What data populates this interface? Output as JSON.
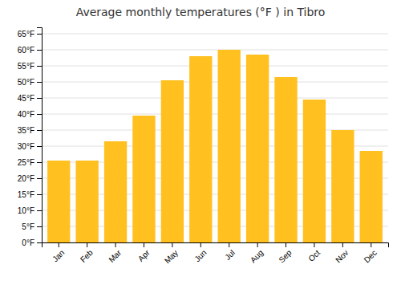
{
  "chart_data": {
    "type": "bar",
    "title": "Average monthly temperatures (°F ) in Tibro",
    "categories": [
      "Jan",
      "Feb",
      "Mar",
      "Apr",
      "May",
      "Jun",
      "Jul",
      "Aug",
      "Sep",
      "Oct",
      "Nov",
      "Dec"
    ],
    "values": [
      25.5,
      25.5,
      31.5,
      39.5,
      50.5,
      58.0,
      60.0,
      58.5,
      51.5,
      44.5,
      35.0,
      28.5
    ],
    "color": "#FFC020",
    "ylim": [
      0,
      67
    ],
    "yticks": [
      {
        "value": 0,
        "label": "0°F"
      },
      {
        "value": 5,
        "label": "5°F"
      },
      {
        "value": 10,
        "label": "10°F"
      },
      {
        "value": 15,
        "label": "15°F"
      },
      {
        "value": 20,
        "label": "20°F"
      },
      {
        "value": 25,
        "label": "25°F"
      },
      {
        "value": 30,
        "label": "30°F"
      },
      {
        "value": 35,
        "label": "35°F"
      },
      {
        "value": 40,
        "label": "40°F"
      },
      {
        "value": 45,
        "label": "45°F"
      },
      {
        "value": 50,
        "label": "50°F"
      },
      {
        "value": 55,
        "label": "55°F"
      },
      {
        "value": 60,
        "label": "60°F"
      },
      {
        "value": 65,
        "label": "65°F"
      }
    ],
    "grid": true
  }
}
